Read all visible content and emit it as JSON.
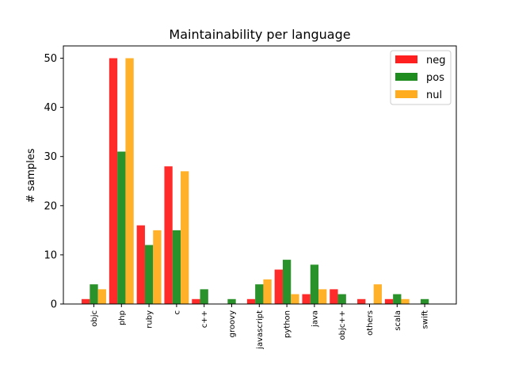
{
  "chart_data": {
    "type": "bar",
    "title": "Maintainability per language",
    "xlabel": "",
    "ylabel": "# samples",
    "ylim": [
      0,
      52.5
    ],
    "yticks": [
      0,
      10,
      20,
      30,
      40,
      50
    ],
    "categories": [
      "objc",
      "php",
      "ruby",
      "c",
      "c++",
      "groovy",
      "javascript",
      "python",
      "java",
      "objc++",
      "others",
      "scala",
      "swift"
    ],
    "series": [
      {
        "name": "neg",
        "color": "#ff1f1f",
        "values": [
          1,
          50,
          16,
          28,
          1,
          0,
          1,
          7,
          2,
          3,
          1,
          1,
          0
        ]
      },
      {
        "name": "pos",
        "color": "#1f8c1f",
        "values": [
          4,
          31,
          12,
          15,
          3,
          1,
          4,
          9,
          8,
          2,
          0,
          2,
          1
        ]
      },
      {
        "name": "nul",
        "color": "#ffad1f",
        "values": [
          3,
          50,
          15,
          27,
          0,
          0,
          5,
          2,
          3,
          0,
          4,
          1,
          0
        ]
      }
    ],
    "legend": "top-right",
    "grid": false
  }
}
